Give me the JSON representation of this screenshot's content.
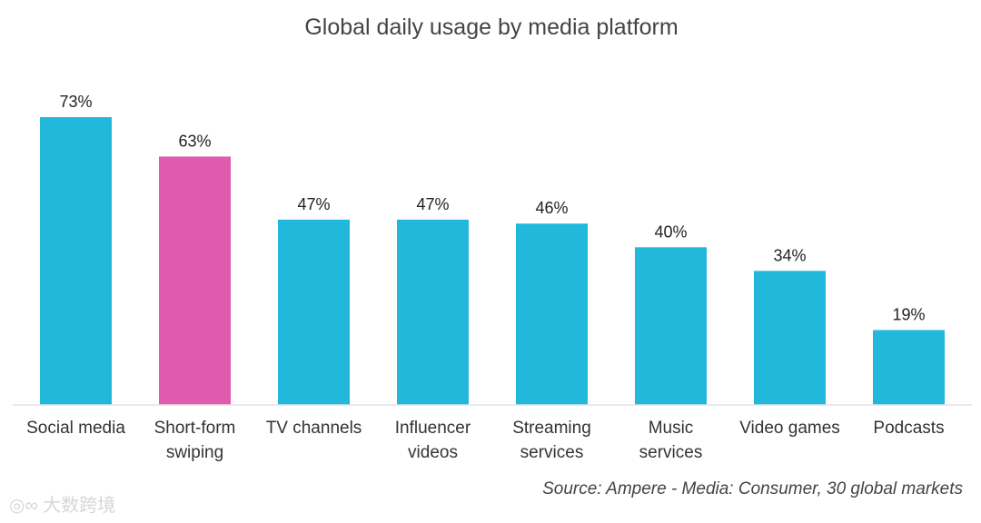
{
  "chart_data": {
    "type": "bar",
    "title": "Global daily usage by media platform",
    "categories": [
      [
        "Social media"
      ],
      [
        "Short-form",
        "swiping"
      ],
      [
        "TV channels"
      ],
      [
        "Influencer",
        "videos"
      ],
      [
        "Streaming",
        "services"
      ],
      [
        "Music",
        "services"
      ],
      [
        "Video games"
      ],
      [
        "Podcasts"
      ]
    ],
    "values": [
      73,
      63,
      47,
      47,
      46,
      40,
      34,
      19
    ],
    "value_labels": [
      "73%",
      "63%",
      "47%",
      "47%",
      "46%",
      "40%",
      "34%",
      "19%"
    ],
    "unit": "%",
    "ylim": [
      0,
      73
    ],
    "grid": false,
    "colors": {
      "default": "#22b8dc",
      "highlight": "#e05bad",
      "highlight_index": 1,
      "baseline": "#e3e3e3"
    }
  },
  "source": "Source: Ampere - Media: Consumer, 30 global markets",
  "watermark": "大数跨境"
}
